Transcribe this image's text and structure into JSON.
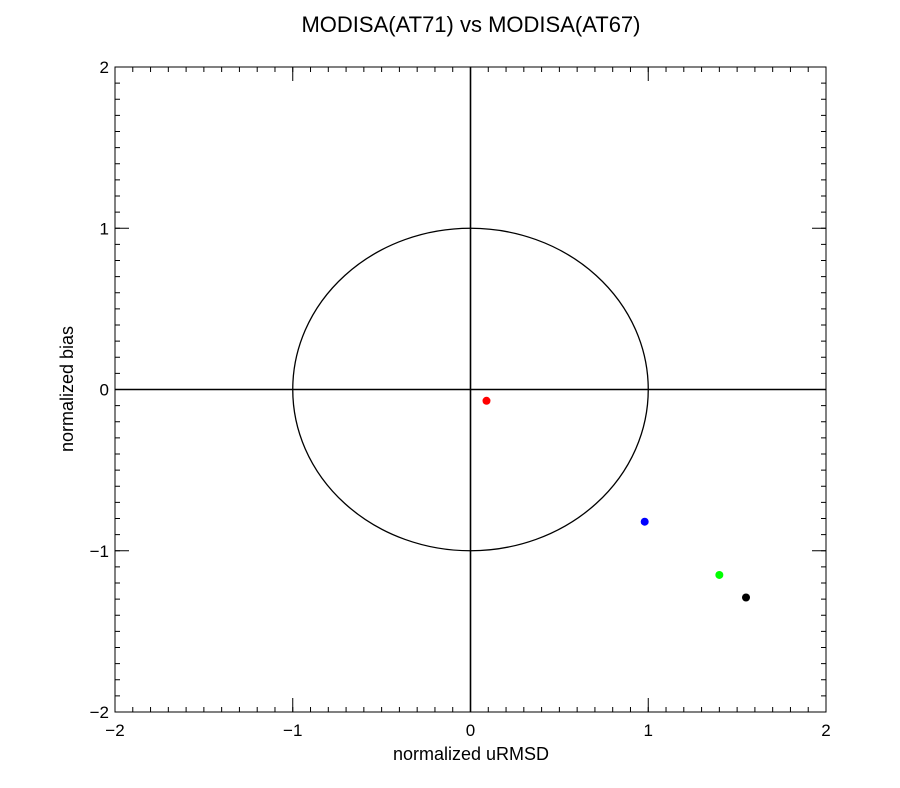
{
  "chart_data": {
    "type": "scatter",
    "title": "MODISA(AT71) vs MODISA(AT67)",
    "xlabel": "normalized uRMSD",
    "ylabel": "normalized bias",
    "xlim": [
      -2,
      2
    ],
    "ylim": [
      -2,
      2
    ],
    "xticks": [
      -2,
      -1,
      0,
      1,
      2
    ],
    "yticks": [
      -2,
      -1,
      0,
      1,
      2
    ],
    "xtick_labels": [
      "−2",
      "−1",
      "0",
      "1",
      "2"
    ],
    "ytick_labels": [
      "−2",
      "−1",
      "0",
      "1",
      "2"
    ],
    "minor_tick_step": 0.1,
    "grid": false,
    "reference_circle_radius": 1,
    "reference_lines": {
      "x": 0,
      "y": 0
    },
    "points": [
      {
        "x": 0.09,
        "y": -0.07,
        "color": "#ff0000"
      },
      {
        "x": 0.98,
        "y": -0.82,
        "color": "#0000ff"
      },
      {
        "x": 1.4,
        "y": -1.15,
        "color": "#00ff00"
      },
      {
        "x": 1.55,
        "y": -1.29,
        "color": "#000000"
      }
    ]
  }
}
